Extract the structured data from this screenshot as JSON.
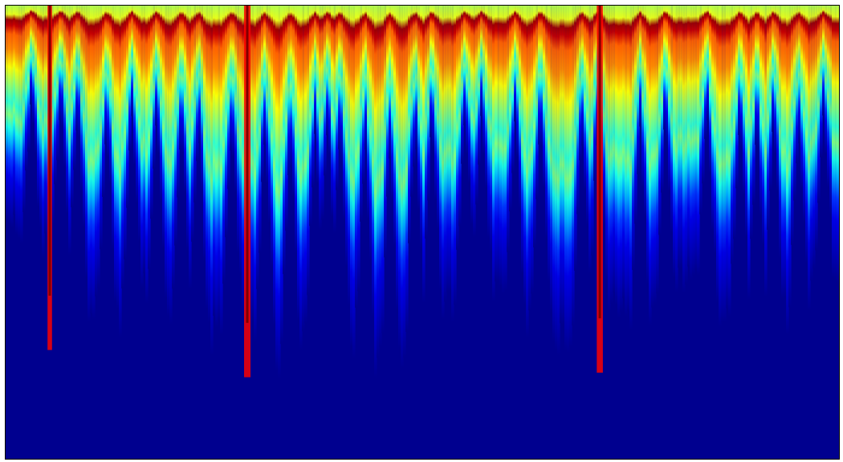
{
  "chart_data": {
    "type": "heatmap",
    "title": "",
    "xlabel": "",
    "ylabel": "",
    "colormap": "jet",
    "colormap_stops": [
      "#00008f",
      "#0000ff",
      "#0080ff",
      "#00ffff",
      "#80ff80",
      "#ffff00",
      "#ff8000",
      "#ff0000",
      "#800000"
    ],
    "background_color": "#00008f",
    "axes_visible": false,
    "grid": false,
    "legend": "none",
    "intensity_profile_top_to_bottom": [
      {
        "depth": 0.0,
        "intensity": 0.55
      },
      {
        "depth": 0.04,
        "intensity": 0.6
      },
      {
        "depth": 0.065,
        "intensity": 0.97
      },
      {
        "depth": 0.09,
        "intensity": 0.93
      },
      {
        "depth": 0.13,
        "intensity": 0.78
      },
      {
        "depth": 0.2,
        "intensity": 0.74
      },
      {
        "depth": 0.28,
        "intensity": 0.62
      },
      {
        "depth": 0.36,
        "intensity": 0.52
      },
      {
        "depth": 0.44,
        "intensity": 0.42
      },
      {
        "depth": 0.5,
        "intensity": 0.5
      },
      {
        "depth": 0.56,
        "intensity": 0.4
      },
      {
        "depth": 0.62,
        "intensity": 0.3
      },
      {
        "depth": 0.7,
        "intensity": 0.18
      },
      {
        "depth": 0.78,
        "intensity": 0.1
      },
      {
        "depth": 1.0,
        "intensity": 0.0
      }
    ],
    "energy_envelope": [
      0.47,
      0.51,
      0.55,
      0.52,
      0.6,
      0.66,
      0.7,
      0.71,
      0.67,
      0.64,
      0.66,
      0.7,
      0.72,
      0.74,
      0.73,
      0.7,
      0.68,
      0.75,
      0.8,
      0.78,
      0.74,
      0.7,
      0.73,
      0.76,
      0.8,
      0.82,
      0.78,
      0.72,
      0.7,
      0.68,
      0.66,
      0.64,
      0.62,
      0.65,
      0.7,
      0.68,
      0.72,
      0.75,
      0.7,
      0.66,
      0.68,
      0.7,
      0.72,
      0.7,
      0.62,
      0.6,
      0.62,
      0.67,
      0.65,
      0.7,
      0.72,
      0.68,
      0.7,
      0.64,
      0.6,
      0.58
    ],
    "silence_dips": [
      0.03,
      0.065,
      0.085,
      0.12,
      0.15,
      0.18,
      0.21,
      0.23,
      0.27,
      0.31,
      0.34,
      0.37,
      0.385,
      0.4,
      0.43,
      0.46,
      0.49,
      0.51,
      0.55,
      0.57,
      0.61,
      0.64,
      0.69,
      0.71,
      0.76,
      0.79,
      0.84,
      0.88,
      0.9,
      0.92,
      0.95,
      0.98
    ],
    "broadband_events": [
      {
        "t": 0.053,
        "strength": 0.7
      },
      {
        "t": 0.29,
        "strength": 1.0
      },
      {
        "t": 0.713,
        "strength": 0.95
      }
    ]
  }
}
